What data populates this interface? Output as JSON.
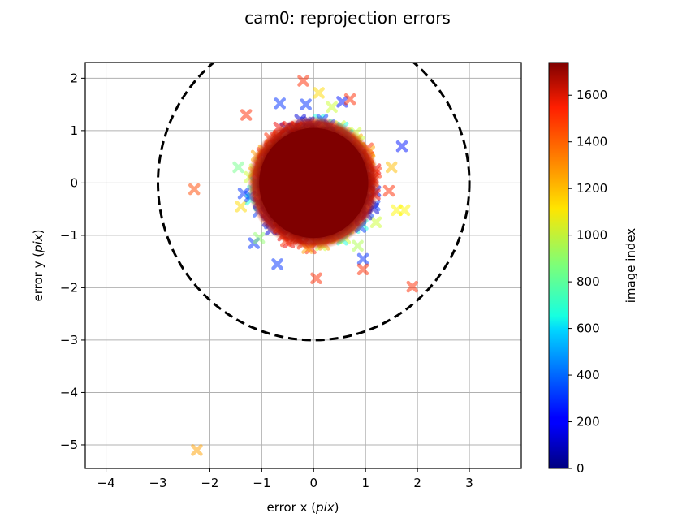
{
  "chart_data": {
    "type": "scatter",
    "title": "cam0: reprojection errors",
    "xlabel": {
      "prefix": "error x (",
      "unit": "pix",
      "suffix": ")"
    },
    "ylabel": {
      "prefix": "error y (",
      "unit": "pix",
      "suffix": ")"
    },
    "xlim": [
      -4.4,
      4.0
    ],
    "ylim": [
      -5.45,
      2.3
    ],
    "xticks": [
      -4,
      -3,
      -2,
      -1,
      0,
      1,
      2,
      3
    ],
    "yticks": [
      2,
      1,
      0,
      -1,
      -2,
      -3,
      -4,
      -5
    ],
    "grid": true,
    "marker": "x",
    "colormap": "jet",
    "circle": {
      "center": [
        0,
        0
      ],
      "radius": 3,
      "style": "dashed"
    },
    "cluster": {
      "center": [
        0,
        0
      ],
      "radius": 1.25
    },
    "points": [
      {
        "x": -2.3,
        "y": -0.12,
        "c": 1400
      },
      {
        "x": -2.25,
        "y": -5.1,
        "c": 1250
      },
      {
        "x": -0.2,
        "y": 1.95,
        "c": 1450
      },
      {
        "x": 0.1,
        "y": 1.72,
        "c": 1150
      },
      {
        "x": 0.55,
        "y": 1.55,
        "c": 250
      },
      {
        "x": 0.7,
        "y": 1.6,
        "c": 1450
      },
      {
        "x": -1.3,
        "y": 1.3,
        "c": 1450
      },
      {
        "x": -0.65,
        "y": 1.52,
        "c": 300
      },
      {
        "x": 1.7,
        "y": 0.7,
        "c": 250
      },
      {
        "x": 1.5,
        "y": 0.3,
        "c": 1200
      },
      {
        "x": 1.45,
        "y": -0.15,
        "c": 1450
      },
      {
        "x": 1.75,
        "y": -0.52,
        "c": 1100
      },
      {
        "x": 1.6,
        "y": -0.52,
        "c": 1100
      },
      {
        "x": 1.9,
        "y": -1.98,
        "c": 1450
      },
      {
        "x": 0.05,
        "y": -1.82,
        "c": 1450
      },
      {
        "x": 0.95,
        "y": -1.45,
        "c": 300
      },
      {
        "x": 0.95,
        "y": -1.65,
        "c": 1450
      },
      {
        "x": -0.7,
        "y": -1.55,
        "c": 300
      },
      {
        "x": -1.15,
        "y": -1.15,
        "c": 300
      },
      {
        "x": -1.05,
        "y": -1.05,
        "c": 900
      },
      {
        "x": -1.45,
        "y": 0.3,
        "c": 850
      },
      {
        "x": -1.35,
        "y": -0.2,
        "c": 300
      },
      {
        "x": -1.4,
        "y": -0.45,
        "c": 1150
      },
      {
        "x": 0.85,
        "y": -1.2,
        "c": 950
      },
      {
        "x": 1.2,
        "y": -0.75,
        "c": 1000
      },
      {
        "x": -0.15,
        "y": 1.5,
        "c": 300
      },
      {
        "x": 0.35,
        "y": 1.45,
        "c": 1000
      }
    ],
    "colorbar": {
      "label": "image index",
      "range": [
        0,
        1740
      ],
      "ticks": [
        0,
        200,
        400,
        600,
        800,
        1000,
        1200,
        1400,
        1600
      ]
    }
  }
}
